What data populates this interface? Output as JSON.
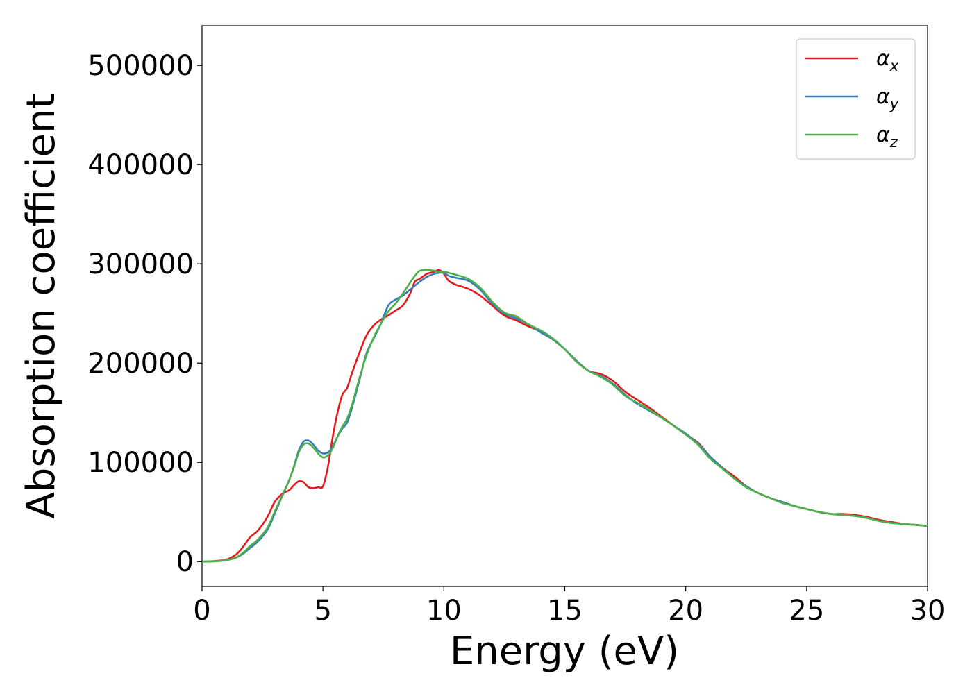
{
  "chart_data": {
    "type": "line",
    "xlabel": "Energy (eV)",
    "ylabel": "Absorption coefficient",
    "xlim": [
      0,
      30
    ],
    "ylim": [
      -25000,
      540000
    ],
    "xticks": [
      0,
      5,
      10,
      15,
      20,
      25,
      30
    ],
    "xtick_labels": [
      "0",
      "5",
      "10",
      "15",
      "20",
      "25",
      "30"
    ],
    "yticks": [
      0,
      100000,
      200000,
      300000,
      400000,
      500000
    ],
    "ytick_labels": [
      "0",
      "100000",
      "200000",
      "300000",
      "400000",
      "500000"
    ],
    "grid": false,
    "legend": "top-right",
    "series": [
      {
        "name": "αx",
        "legend_base": "α",
        "legend_sub": "x",
        "color": "#e41a1c",
        "x": [
          0,
          0.5,
          1,
          1.4,
          1.7,
          2,
          2.3,
          2.7,
          3,
          3.3,
          3.6,
          3.8,
          4,
          4.2,
          4.4,
          4.6,
          4.8,
          5,
          5.2,
          5.4,
          5.6,
          5.8,
          6,
          6.2,
          6.5,
          6.8,
          7.1,
          7.4,
          7.7,
          8,
          8.3,
          8.6,
          8.8,
          9,
          9.3,
          9.6,
          9.8,
          10,
          10.2,
          10.5,
          11,
          11.5,
          12,
          12.5,
          13,
          13.5,
          14,
          14.5,
          15,
          15.5,
          16,
          16.5,
          17,
          17.5,
          18,
          18.5,
          19,
          19.5,
          20,
          20.5,
          21,
          21.5,
          22,
          22.5,
          23,
          23.5,
          24,
          24.5,
          25,
          25.5,
          26,
          26.5,
          27,
          27.5,
          28,
          28.5,
          29,
          29.5,
          30
        ],
        "y": [
          0,
          500,
          2000,
          7000,
          15000,
          25000,
          31000,
          45000,
          60000,
          68000,
          72000,
          77000,
          81000,
          80000,
          75000,
          74000,
          75000,
          76000,
          95000,
          125000,
          150000,
          168000,
          175000,
          190000,
          210000,
          228000,
          238000,
          244000,
          248000,
          253000,
          258000,
          270000,
          282000,
          285000,
          290000,
          292000,
          294000,
          290000,
          283000,
          279000,
          275000,
          268000,
          258000,
          248000,
          243000,
          237000,
          232000,
          224000,
          214000,
          202000,
          192000,
          189000,
          182000,
          171000,
          163000,
          155000,
          146000,
          137000,
          128000,
          120000,
          106000,
          95000,
          86000,
          76000,
          69000,
          64000,
          60000,
          56000,
          53000,
          50000,
          48000,
          48000,
          47000,
          45000,
          42000,
          40000,
          38000,
          37000,
          36000
        ]
      },
      {
        "name": "αy",
        "legend_base": "α",
        "legend_sub": "y",
        "color": "#377eb8",
        "x": [
          0,
          0.5,
          1,
          1.4,
          1.7,
          2,
          2.3,
          2.7,
          3,
          3.3,
          3.6,
          3.8,
          4,
          4.2,
          4.4,
          4.6,
          4.8,
          5,
          5.2,
          5.4,
          5.6,
          5.8,
          6,
          6.2,
          6.5,
          6.8,
          7.1,
          7.4,
          7.7,
          8,
          8.3,
          8.6,
          8.8,
          9,
          9.3,
          9.6,
          9.8,
          10,
          10.2,
          10.5,
          11,
          11.5,
          12,
          12.5,
          13,
          13.5,
          14,
          14.5,
          15,
          15.5,
          16,
          16.5,
          17,
          17.5,
          18,
          18.5,
          19,
          19.5,
          20,
          20.5,
          21,
          21.5,
          22,
          22.5,
          23,
          23.5,
          24,
          24.5,
          25,
          25.5,
          26,
          26.5,
          27,
          27.5,
          28,
          28.5,
          29,
          29.5,
          30
        ],
        "y": [
          0,
          300,
          1500,
          4000,
          8000,
          14000,
          20000,
          32000,
          48000,
          65000,
          82000,
          96000,
          112000,
          121000,
          122000,
          118000,
          112000,
          109000,
          110000,
          116000,
          126000,
          134000,
          140000,
          155000,
          182000,
          210000,
          225000,
          240000,
          258000,
          264000,
          268000,
          274000,
          278000,
          282000,
          287000,
          290000,
          291000,
          291000,
          288000,
          286000,
          283000,
          274000,
          260000,
          250000,
          245000,
          239000,
          231000,
          224000,
          214000,
          202000,
          192000,
          187000,
          179000,
          168000,
          159000,
          152000,
          145000,
          137000,
          129000,
          119000,
          106000,
          95000,
          84000,
          76000,
          69000,
          64000,
          60000,
          56000,
          53000,
          50000,
          48000,
          47000,
          46000,
          44000,
          41000,
          39000,
          38000,
          37000,
          36000
        ]
      },
      {
        "name": "αz",
        "legend_base": "α",
        "legend_sub": "z",
        "color": "#4daf4a",
        "x": [
          0,
          0.5,
          1,
          1.4,
          1.7,
          2,
          2.3,
          2.7,
          3,
          3.3,
          3.6,
          3.8,
          4,
          4.2,
          4.4,
          4.6,
          4.8,
          5,
          5.2,
          5.4,
          5.6,
          5.8,
          6,
          6.2,
          6.5,
          6.8,
          7.1,
          7.4,
          7.7,
          8,
          8.3,
          8.6,
          8.8,
          9,
          9.3,
          9.6,
          9.8,
          10,
          10.2,
          10.5,
          11,
          11.5,
          12,
          12.5,
          13,
          13.5,
          14,
          14.5,
          15,
          15.5,
          16,
          16.5,
          17,
          17.5,
          18,
          18.5,
          19,
          19.5,
          20,
          20.5,
          21,
          21.5,
          22,
          22.5,
          23,
          23.5,
          24,
          24.5,
          25,
          25.5,
          26,
          26.5,
          27,
          27.5,
          28,
          28.5,
          29,
          29.5,
          30
        ],
        "y": [
          0,
          300,
          1500,
          4000,
          9000,
          16000,
          22000,
          34000,
          50000,
          66000,
          82000,
          95000,
          110000,
          118000,
          119000,
          115000,
          109000,
          105000,
          107000,
          114000,
          126000,
          136000,
          144000,
          158000,
          184000,
          208000,
          226000,
          240000,
          252000,
          260000,
          270000,
          281000,
          288000,
          293000,
          294000,
          293000,
          292000,
          292000,
          291000,
          289000,
          285000,
          276000,
          262000,
          251000,
          247000,
          239000,
          233000,
          225000,
          214000,
          201000,
          192000,
          186000,
          178000,
          167000,
          160000,
          153000,
          145000,
          137000,
          128000,
          118000,
          104000,
          94000,
          84000,
          75000,
          69000,
          64000,
          59000,
          56000,
          53000,
          50000,
          48000,
          47000,
          46000,
          44000,
          41000,
          39000,
          38000,
          37000,
          36000
        ]
      }
    ]
  }
}
